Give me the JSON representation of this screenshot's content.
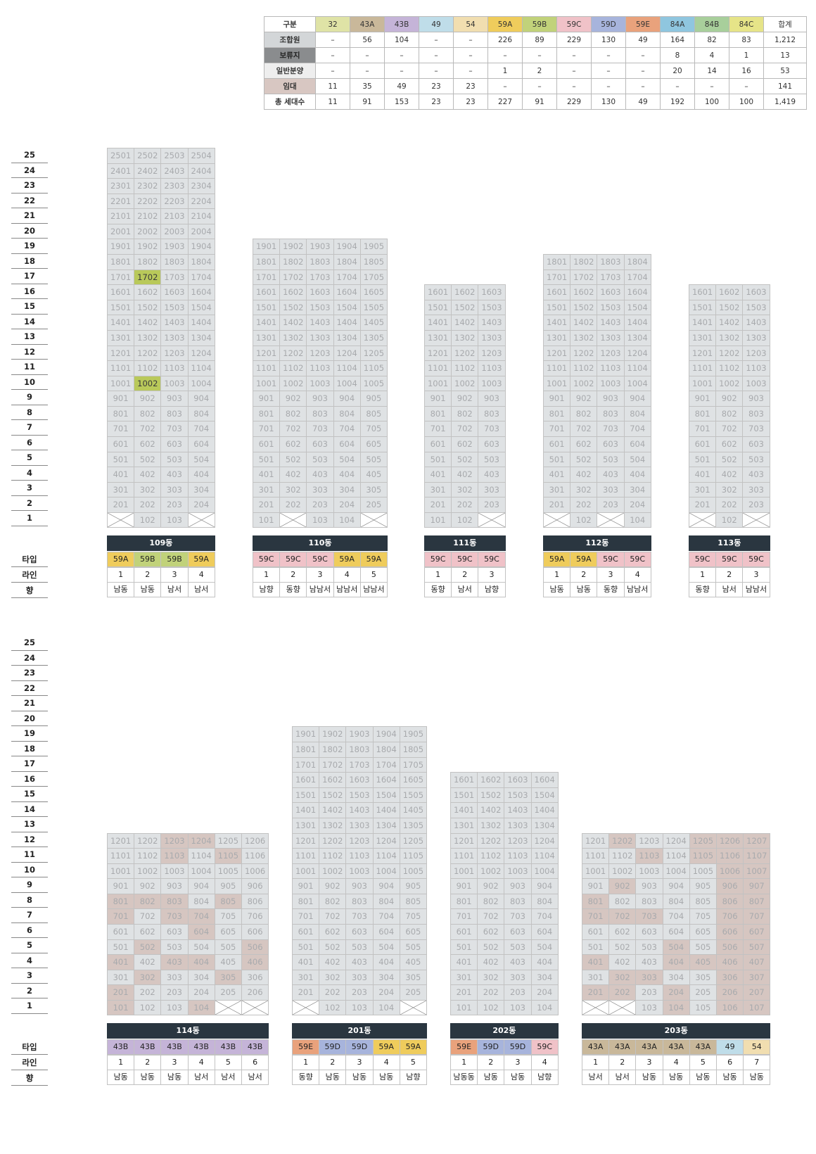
{
  "summary": {
    "header_label": "구분",
    "types": [
      {
        "label": "32",
        "color": "#dfe3a6"
      },
      {
        "label": "43A",
        "color": "#c9b89a"
      },
      {
        "label": "43B",
        "color": "#c5b4d8"
      },
      {
        "label": "49",
        "color": "#bfdde9"
      },
      {
        "label": "54",
        "color": "#f1deb0"
      },
      {
        "label": "59A",
        "color": "#efcc5c"
      },
      {
        "label": "59B",
        "color": "#c1d27a"
      },
      {
        "label": "59C",
        "color": "#f0c2c8"
      },
      {
        "label": "59D",
        "color": "#a7b4dc"
      },
      {
        "label": "59E",
        "color": "#e9a27c"
      },
      {
        "label": "84A",
        "color": "#8fc6df"
      },
      {
        "label": "84B",
        "color": "#a8cf9b"
      },
      {
        "label": "84C",
        "color": "#e6e488"
      }
    ],
    "total_label": "합계",
    "rows": [
      {
        "label": "조합원",
        "color": "#d3d6d8",
        "cells": [
          "–",
          "56",
          "104",
          "–",
          "–",
          "226",
          "89",
          "229",
          "130",
          "49",
          "164",
          "82",
          "83"
        ],
        "total": "1,212"
      },
      {
        "label": "보류지",
        "color": "#8a8c8e",
        "cells": [
          "–",
          "–",
          "–",
          "–",
          "–",
          "–",
          "–",
          "–",
          "–",
          "–",
          "8",
          "4",
          "1"
        ],
        "total": "13"
      },
      {
        "label": "일반분양",
        "color": "#eeeeee",
        "cells": [
          "–",
          "–",
          "–",
          "–",
          "–",
          "1",
          "2",
          "–",
          "–",
          "–",
          "20",
          "14",
          "16"
        ],
        "total": "53"
      },
      {
        "label": "임대",
        "color": "#d8c7c2",
        "cells": [
          "11",
          "35",
          "49",
          "23",
          "23",
          "–",
          "–",
          "–",
          "–",
          "–",
          "–",
          "–",
          "–"
        ],
        "total": "141"
      },
      {
        "label": "총 세대수",
        "color": "#ffffff",
        "cells": [
          "11",
          "91",
          "153",
          "23",
          "23",
          "227",
          "91",
          "229",
          "130",
          "49",
          "192",
          "100",
          "100"
        ],
        "total": "1,419"
      }
    ]
  },
  "legend": {
    "type_label": "타입",
    "line_label": "라인",
    "dir_label": "향"
  },
  "colors": {
    "59A": "#efcc5c",
    "59B": "#c1d27a",
    "59C": "#f0c2c8",
    "59D": "#a7b4dc",
    "59E": "#e9a27c",
    "43A": "#c9b89a",
    "43B": "#c5b4d8",
    "49": "#bfdde9",
    "54": "#f1deb0"
  },
  "sections": [
    {
      "floors": [
        "25",
        "24",
        "23",
        "22",
        "21",
        "20",
        "19",
        "18",
        "17",
        "16",
        "15",
        "14",
        "13",
        "12",
        "11",
        "10",
        "9",
        "8",
        "7",
        "6",
        "5",
        "4",
        "3",
        "2",
        "1"
      ],
      "buildings": [
        {
          "name": "109동",
          "lines": 4,
          "top": 25,
          "types": [
            "59A",
            "59B",
            "59B",
            "59A"
          ],
          "dirs": [
            "남동",
            "남동",
            "남서",
            "남서"
          ],
          "line_nums": [
            "1",
            "2",
            "3",
            "4"
          ],
          "x_ground": [
            "1-1",
            "1-4"
          ],
          "green": [
            "1702",
            "1002"
          ],
          "brown": []
        },
        {
          "name": "110동",
          "lines": 5,
          "top": 19,
          "types": [
            "59C",
            "59C",
            "59C",
            "59A",
            "59A"
          ],
          "dirs": [
            "남향",
            "동향",
            "남남서",
            "남남서",
            "남남서"
          ],
          "line_nums": [
            "1",
            "2",
            "3",
            "4",
            "5"
          ],
          "x_ground": [
            "1-2",
            "1-5"
          ],
          "green": [],
          "brown": []
        },
        {
          "name": "111동",
          "lines": 3,
          "top": 16,
          "types": [
            "59C",
            "59C",
            "59C"
          ],
          "dirs": [
            "동향",
            "남서",
            "남향"
          ],
          "line_nums": [
            "1",
            "2",
            "3"
          ],
          "x_ground": [
            "1-3"
          ],
          "green": [],
          "brown": []
        },
        {
          "name": "112동",
          "lines": 4,
          "top": 18,
          "types": [
            "59A",
            "59A",
            "59C",
            "59C"
          ],
          "dirs": [
            "남동",
            "남동",
            "동향",
            "남남서"
          ],
          "line_nums": [
            "1",
            "2",
            "3",
            "4"
          ],
          "x_ground": [
            "1-1",
            "1-3"
          ],
          "green": [],
          "brown": []
        },
        {
          "name": "113동",
          "lines": 3,
          "top": 16,
          "types": [
            "59C",
            "59C",
            "59C"
          ],
          "dirs": [
            "동향",
            "남서",
            "남남서"
          ],
          "line_nums": [
            "1",
            "2",
            "3"
          ],
          "x_ground": [
            "1-1",
            "1-3"
          ],
          "green": [],
          "brown": []
        }
      ]
    },
    {
      "floors": [
        "25",
        "24",
        "23",
        "22",
        "21",
        "20",
        "19",
        "18",
        "17",
        "16",
        "15",
        "14",
        "13",
        "12",
        "11",
        "10",
        "9",
        "8",
        "7",
        "6",
        "5",
        "4",
        "3",
        "2",
        "1"
      ],
      "buildings": [
        {
          "name": "114동",
          "lines": 6,
          "top": 12,
          "types": [
            "43B",
            "43B",
            "43B",
            "43B",
            "43B",
            "43B"
          ],
          "dirs": [
            "남동",
            "남동",
            "남동",
            "남서",
            "남서",
            "남서"
          ],
          "line_nums": [
            "1",
            "2",
            "3",
            "4",
            "5",
            "6"
          ],
          "x_ground": [
            "1-5",
            "1-6"
          ],
          "green": [],
          "brown": [
            "1203",
            "1204",
            "1103",
            "1105",
            "801",
            "802",
            "803",
            "805",
            "701",
            "703",
            "704",
            "604",
            "502",
            "506",
            "401",
            "403",
            "404",
            "406",
            "302",
            "305",
            "201",
            "101",
            "104"
          ]
        },
        {
          "name": "201동",
          "lines": 5,
          "top": 19,
          "types": [
            "59E",
            "59D",
            "59D",
            "59A",
            "59A"
          ],
          "dirs": [
            "동향",
            "남동",
            "남동",
            "남동",
            "남향"
          ],
          "line_nums": [
            "1",
            "2",
            "3",
            "4",
            "5"
          ],
          "x_ground": [
            "1-1",
            "1-5"
          ],
          "green": [],
          "brown": []
        },
        {
          "name": "202동",
          "lines": 4,
          "top": 16,
          "types": [
            "59E",
            "59D",
            "59D",
            "59C"
          ],
          "dirs": [
            "남동동",
            "남동",
            "남동",
            "남향"
          ],
          "line_nums": [
            "1",
            "2",
            "3",
            "4"
          ],
          "x_ground": [],
          "green": [],
          "brown": []
        },
        {
          "name": "203동",
          "lines": 7,
          "top": 12,
          "types": [
            "43A",
            "43A",
            "43A",
            "43A",
            "43A",
            "49",
            "54"
          ],
          "dirs": [
            "남서",
            "남서",
            "남동",
            "남동",
            "남동",
            "남동",
            "남동"
          ],
          "line_nums": [
            "1",
            "2",
            "3",
            "4",
            "5",
            "6",
            "7"
          ],
          "x_ground": [
            "1-1",
            "1-2"
          ],
          "green": [],
          "brown": [
            "1202",
            "1205",
            "1206",
            "1207",
            "1103",
            "1105",
            "1106",
            "1107",
            "1006",
            "1007",
            "902",
            "906",
            "907",
            "801",
            "806",
            "807",
            "701",
            "702",
            "703",
            "706",
            "707",
            "606",
            "607",
            "504",
            "506",
            "507",
            "401",
            "404",
            "405",
            "406",
            "407",
            "302",
            "303",
            "306",
            "307",
            "201",
            "202",
            "204",
            "206",
            "207",
            "104",
            "106",
            "107"
          ]
        }
      ]
    }
  ]
}
